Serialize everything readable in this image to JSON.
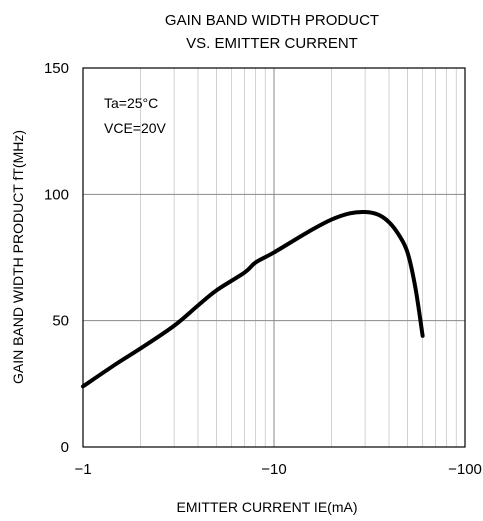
{
  "chart_data": {
    "type": "line",
    "title_lines": [
      "GAIN BAND WIDTH PRODUCT",
      "VS. EMITTER CURRENT"
    ],
    "xlabel": "EMITTER CURRENT  IE(mA)",
    "ylabel": "GAIN BAND WIDTH PRODUCT  fT(MHz)",
    "x_scale": "log",
    "x_direction": "negative",
    "xlim": [
      -1,
      -100
    ],
    "ylim": [
      0,
      150
    ],
    "x_ticks": [
      -1,
      -10,
      -100
    ],
    "x_tick_labels": [
      "−1",
      "−10",
      "−100"
    ],
    "y_ticks": [
      0,
      50,
      100,
      150
    ],
    "y_tick_labels": [
      "0",
      "50",
      "100",
      "150"
    ],
    "grid": true,
    "annotations": [
      "Ta=25°C",
      "VCE=20V"
    ],
    "series": [
      {
        "x": [
          -1,
          -1.5,
          -2,
          -3,
          -4,
          -5,
          -7,
          -8,
          -10,
          -15,
          -20,
          -25,
          -30,
          -35,
          -40,
          -45,
          -50,
          -55,
          -60
        ],
        "y": [
          24,
          33,
          39,
          48,
          56,
          62,
          69,
          73,
          77,
          85,
          90,
          92.5,
          93,
          92,
          89,
          84,
          77,
          63,
          44
        ]
      }
    ]
  }
}
